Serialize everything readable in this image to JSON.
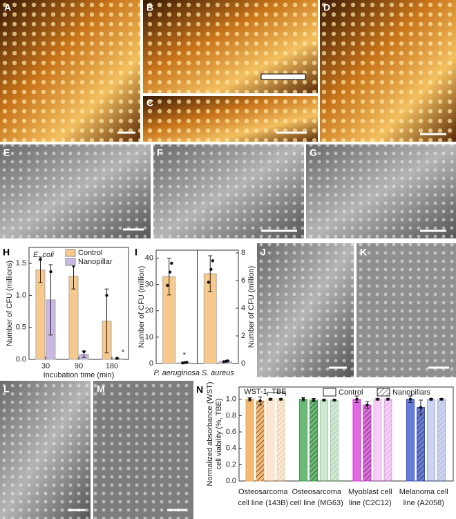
{
  "panels": [
    {
      "label": "A"
    },
    {
      "label": "B"
    },
    {
      "label": "C"
    },
    {
      "label": "D"
    },
    {
      "label": "E"
    },
    {
      "label": "F"
    },
    {
      "label": "G"
    },
    {
      "label": "J"
    },
    {
      "label": "K"
    },
    {
      "label": "L"
    },
    {
      "label": "M"
    }
  ],
  "chart_data": [
    {
      "type": "grouped-bar",
      "panel": "H",
      "title": "E. coli",
      "y_label": "Number of CFU (millions)",
      "x_label": "Incubation time (min)",
      "categories": [
        "30",
        "90",
        "180"
      ],
      "series": [
        {
          "name": "Control",
          "color": "#f8c98c",
          "values": [
            1.4,
            1.3,
            0.6
          ],
          "errors": [
            0.2,
            0.2,
            0.5
          ]
        },
        {
          "name": "Nanopillar",
          "color": "#c9b8e3",
          "values": [
            0.93,
            0.08,
            0.01
          ],
          "errors": [
            0.55,
            0.05,
            0.01
          ]
        }
      ],
      "annotations": [
        {
          "text": "*",
          "category": 2
        }
      ],
      "ylim": [
        0,
        1.75
      ],
      "yticks": [
        {
          "value": 0,
          "label": "0.0"
        },
        {
          "value": 0.5,
          "label": "0.5"
        },
        {
          "value": 1,
          "label": "1.0"
        },
        {
          "value": 1.5,
          "label": "1.5"
        }
      ]
    },
    {
      "type": "dual-axis-bar",
      "panel": "I",
      "y_label": "Number of CFU (million)",
      "y2_label": "Number of CFU (million)",
      "categories": [
        "P. aeruginosa",
        "S. aureus"
      ],
      "series": [
        {
          "color": "#f8c98c",
          "values": [
            33,
            null
          ],
          "errors": [
            7,
            null
          ]
        },
        {
          "color": "#c9b8e3",
          "values": [
            0.3,
            null
          ],
          "errors": [
            0.2,
            null
          ]
        },
        {
          "color": "#f8c98c",
          "axis": "y2",
          "values": [
            null,
            6.5
          ],
          "errors": [
            null,
            1.3
          ]
        },
        {
          "color": "#c9b8e3",
          "axis": "y2",
          "values": [
            null,
            0.15
          ],
          "errors": [
            null,
            0.05
          ]
        }
      ],
      "annotations": [
        {
          "text": "*",
          "category": 0
        }
      ],
      "ylim": [
        0,
        43
      ],
      "yticks": [
        0,
        10,
        20,
        30,
        40
      ],
      "y2lim": [
        0,
        8.2
      ],
      "y2ticks": [
        0,
        2,
        4,
        6,
        8
      ]
    },
    {
      "type": "hatched-bar",
      "panel": "N",
      "y_label": [
        "Normalized absorbance (WST)",
        "cell viability (%, TBE)"
      ],
      "group_labels": [
        "WST-1",
        "TBE"
      ],
      "legend": [
        "Control",
        "Nanopillars"
      ],
      "categories": [
        [
          "Osteosarcoma",
          "cell line (143B)"
        ],
        [
          "Osteosarcoma",
          "cell line (MG63)"
        ],
        [
          "Myoblast cell",
          "line (C2C12)"
        ],
        [
          "Melanoma cell",
          "line (A2058)"
        ]
      ],
      "category_colors": [
        "#f2a24a",
        "#3aa34a",
        "#d63ad6",
        "#3550c8"
      ],
      "label_colors": [
        "#8a4a10",
        "#1f7a2a",
        "#c020c0",
        "#2030a0"
      ],
      "series": [
        {
          "hatch": false,
          "light": false,
          "values": [
            1.0,
            1.0,
            1.0,
            1.0
          ],
          "errors": [
            0.02,
            0.02,
            0.04,
            0.04
          ]
        },
        {
          "hatch": true,
          "light": false,
          "values": [
            0.98,
            0.99,
            0.93,
            0.9
          ],
          "errors": [
            0.05,
            0.02,
            0.04,
            0.09
          ]
        },
        {
          "hatch": false,
          "light": true,
          "values": [
            1.0,
            0.99,
            1.0,
            1.0
          ],
          "errors": [
            0.01,
            0.01,
            0.01,
            0.01
          ]
        },
        {
          "hatch": true,
          "light": true,
          "values": [
            1.0,
            0.99,
            1.0,
            1.0
          ],
          "errors": [
            0.01,
            0.01,
            0.01,
            0.01
          ]
        }
      ],
      "ylim": [
        0,
        1.15
      ],
      "yticks": [
        {
          "value": 0,
          "label": "0.0"
        },
        {
          "value": 0.2,
          "label": "0.2"
        },
        {
          "value": 0.4,
          "label": "0.4"
        },
        {
          "value": 0.6,
          "label": "0.6"
        },
        {
          "value": 0.8,
          "label": "0.8"
        },
        {
          "value": 1,
          "label": "1.0"
        }
      ]
    }
  ]
}
